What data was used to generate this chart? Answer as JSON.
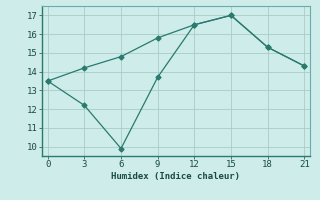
{
  "line1_x": [
    0,
    3,
    6,
    9,
    12,
    15,
    18,
    21
  ],
  "line1_y": [
    13.5,
    12.2,
    9.9,
    13.7,
    16.5,
    17.0,
    15.3,
    14.3
  ],
  "line2_x": [
    0,
    3,
    6,
    9,
    12,
    15,
    18,
    21
  ],
  "line2_y": [
    13.5,
    14.2,
    14.8,
    15.8,
    16.5,
    17.0,
    15.3,
    14.3
  ],
  "line_color": "#2a7a6e",
  "xlabel": "Humidex (Indice chaleur)",
  "xlim": [
    -0.5,
    21.5
  ],
  "ylim": [
    9.5,
    17.5
  ],
  "xticks": [
    0,
    3,
    6,
    9,
    12,
    15,
    18,
    21
  ],
  "yticks": [
    10,
    11,
    12,
    13,
    14,
    15,
    16,
    17
  ],
  "bg_color": "#cdecea",
  "grid_color": "#a8ccc8",
  "spine_color": "#6aacaa"
}
